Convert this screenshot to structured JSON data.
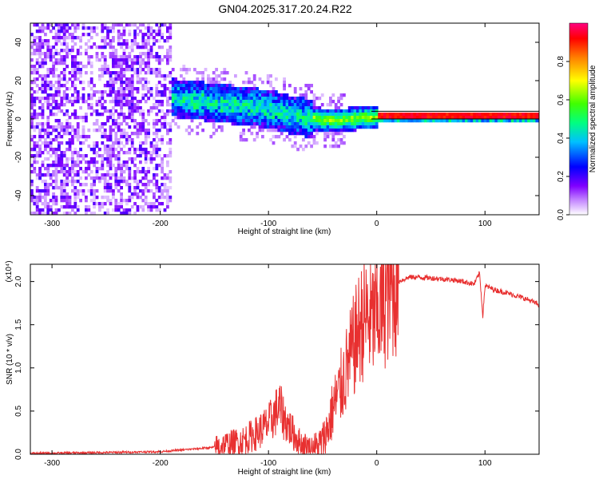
{
  "title": "GN04.2025.317.20.24.R22",
  "chart_data": [
    {
      "type": "heatmap",
      "xlabel": "Height of straight line (km)",
      "ylabel": "Frequency (Hz)",
      "xlim": [
        -320,
        150
      ],
      "ylim": [
        -50,
        50
      ],
      "xticks": [
        -300,
        -200,
        -100,
        0,
        100
      ],
      "yticks": [
        -40,
        -20,
        0,
        20,
        40
      ],
      "colorbar": {
        "label": "Normalized spectral amplitude",
        "range": [
          0,
          1
        ],
        "ticks": [
          "0.0",
          "0.2",
          "0.4",
          "0.6",
          "0.8"
        ],
        "colors": [
          "#ffffff",
          "#8000ff",
          "#0000ff",
          "#00ffff",
          "#00ff00",
          "#ffff00",
          "#ff0000",
          "#ff0080"
        ]
      },
      "ridge": {
        "x": [
          -190,
          -160,
          -130,
          -100,
          -80,
          -60,
          -40,
          -20,
          0,
          50,
          100,
          150
        ],
        "freq": [
          12,
          10,
          8,
          6,
          3,
          1,
          0,
          1,
          2,
          2,
          2,
          2
        ]
      }
    },
    {
      "type": "line",
      "xlabel": "Height of straight line (km)",
      "ylabel": "SNR (10 * v/v)",
      "scale_note": "(x10⁴)",
      "xlim": [
        -320,
        150
      ],
      "ylim": [
        0,
        2.2
      ],
      "xticks": [
        -300,
        -200,
        -100,
        0,
        100
      ],
      "yticks": [
        "0.0",
        "0.5",
        "1.0",
        "1.5",
        "2.0"
      ],
      "color": "#e83030",
      "x": [
        -320,
        -250,
        -200,
        -150,
        -125,
        -110,
        -100,
        -95,
        -90,
        -85,
        -80,
        -75,
        -70,
        -65,
        -60,
        -55,
        -50,
        -45,
        -40,
        -35,
        -30,
        -25,
        -20,
        -15,
        -10,
        -5,
        0,
        5,
        10,
        20,
        30,
        40,
        50,
        60,
        70,
        80,
        90,
        95,
        98,
        100,
        110,
        120,
        130,
        140,
        150
      ],
      "y": [
        0.01,
        0.02,
        0.03,
        0.08,
        0.15,
        0.25,
        0.35,
        0.45,
        0.55,
        0.4,
        0.3,
        0.2,
        0.12,
        0.1,
        0.05,
        0.08,
        0.15,
        0.3,
        0.55,
        0.7,
        0.9,
        1.1,
        1.3,
        1.5,
        1.6,
        1.55,
        1.6,
        1.7,
        1.85,
        2.0,
        2.05,
        2.05,
        2.04,
        2.03,
        2.02,
        2.0,
        1.97,
        2.1,
        1.6,
        1.95,
        1.9,
        1.87,
        1.83,
        1.79,
        1.73
      ]
    }
  ]
}
